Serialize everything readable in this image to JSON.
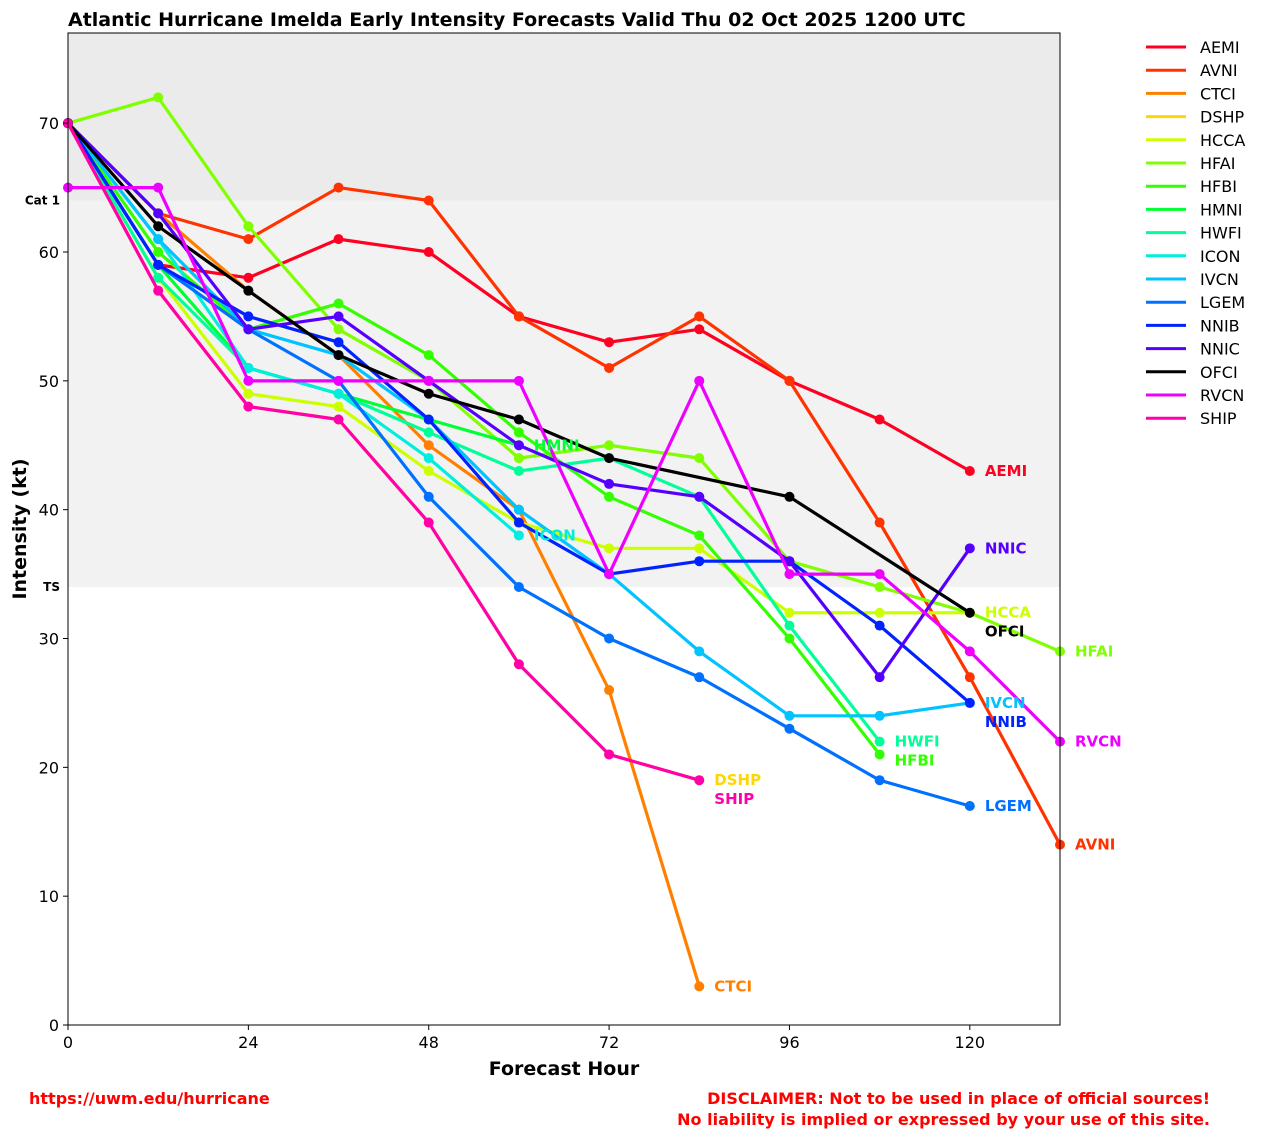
{
  "chart_data": {
    "type": "line",
    "title": "Atlantic Hurricane Imelda Early Intensity Forecasts Valid Thu 02 Oct 2025 1200 UTC",
    "xlabel": "Forecast Hour",
    "ylabel": "Intensity (kt)",
    "xlim": [
      0,
      132
    ],
    "ylim": [
      0,
      77
    ],
    "xticks": [
      0,
      24,
      48,
      72,
      96,
      120
    ],
    "yticks": [
      0,
      10,
      20,
      30,
      40,
      50,
      60,
      70
    ],
    "bands": [
      {
        "label": "Cat 1",
        "from": 64,
        "to": 77,
        "color": "#ebebeb"
      },
      {
        "label": "TS",
        "from": 34,
        "to": 64,
        "color": "#f2f2f2"
      }
    ],
    "legend_position": "outside-top-right",
    "x": [
      0,
      12,
      24,
      36,
      48,
      60,
      72,
      84,
      96,
      108,
      120,
      132
    ],
    "series": [
      {
        "name": "AEMI",
        "color": "#ff0022",
        "values": [
          70,
          59,
          58,
          61,
          60,
          55,
          53,
          54,
          50,
          47,
          43,
          null
        ]
      },
      {
        "name": "AVNI",
        "color": "#ff3300",
        "values": [
          70,
          63,
          61,
          65,
          64,
          55,
          51,
          55,
          50,
          39,
          27,
          14
        ]
      },
      {
        "name": "CTCI",
        "color": "#ff8000",
        "values": [
          70,
          63,
          57,
          52,
          45,
          40,
          26,
          3,
          null,
          null,
          null,
          null
        ]
      },
      {
        "name": "DSHP",
        "color": "#ffd700",
        "values": [
          70,
          57,
          48,
          47,
          39,
          28,
          21,
          19,
          null,
          null,
          null,
          null
        ]
      },
      {
        "name": "HCCA",
        "color": "#ccff00",
        "values": [
          70,
          58,
          49,
          48,
          43,
          39,
          37,
          37,
          32,
          32,
          32,
          null
        ]
      },
      {
        "name": "HFAI",
        "color": "#80ff00",
        "values": [
          70,
          72,
          62,
          54,
          50,
          44,
          45,
          44,
          36,
          34,
          32,
          29
        ]
      },
      {
        "name": "HFBI",
        "color": "#33ff00",
        "values": [
          70,
          60,
          54,
          56,
          52,
          46,
          41,
          38,
          30,
          21,
          null,
          null
        ]
      },
      {
        "name": "HMNI",
        "color": "#00ff33",
        "values": [
          70,
          59,
          51,
          49,
          47,
          45,
          null,
          null,
          null,
          null,
          null,
          null
        ]
      },
      {
        "name": "HWFI",
        "color": "#00ff99",
        "values": [
          70,
          58,
          51,
          49,
          46,
          43,
          44,
          41,
          31,
          22,
          null,
          null
        ]
      },
      {
        "name": "ICON",
        "color": "#00eedd",
        "values": [
          70,
          61,
          51,
          49,
          44,
          38,
          null,
          null,
          null,
          null,
          null,
          null
        ]
      },
      {
        "name": "IVCN",
        "color": "#00c3ff",
        "values": [
          70,
          61,
          54,
          52,
          47,
          40,
          35,
          29,
          24,
          24,
          25,
          null
        ]
      },
      {
        "name": "LGEM",
        "color": "#0070ff",
        "values": [
          70,
          59,
          54,
          50,
          41,
          34,
          30,
          27,
          23,
          19,
          17,
          null
        ]
      },
      {
        "name": "NNIB",
        "color": "#0022ff",
        "values": [
          70,
          59,
          55,
          53,
          47,
          39,
          35,
          36,
          36,
          31,
          25,
          null
        ]
      },
      {
        "name": "NNIC",
        "color": "#5500ff",
        "values": [
          70,
          63,
          54,
          55,
          50,
          45,
          42,
          41,
          36,
          27,
          37,
          null
        ]
      },
      {
        "name": "OFCI",
        "color": "#000000",
        "values": [
          70,
          62,
          57,
          52,
          49,
          47,
          44,
          null,
          41,
          null,
          32,
          null
        ]
      },
      {
        "name": "RVCN",
        "color": "#ee00ff",
        "values": [
          65,
          65,
          50,
          50,
          50,
          50,
          35,
          50,
          35,
          35,
          29,
          22
        ]
      },
      {
        "name": "SHIP",
        "color": "#ff00aa",
        "values": [
          70,
          57,
          48,
          47,
          39,
          28,
          21,
          19,
          null,
          null,
          null,
          null
        ]
      }
    ]
  },
  "footer": {
    "url": "https://uwm.edu/hurricane",
    "disclaimer_1": "DISCLAIMER: Not to be used in place of official sources!",
    "disclaimer_2": "No liability is implied or expressed by your use of this site."
  }
}
